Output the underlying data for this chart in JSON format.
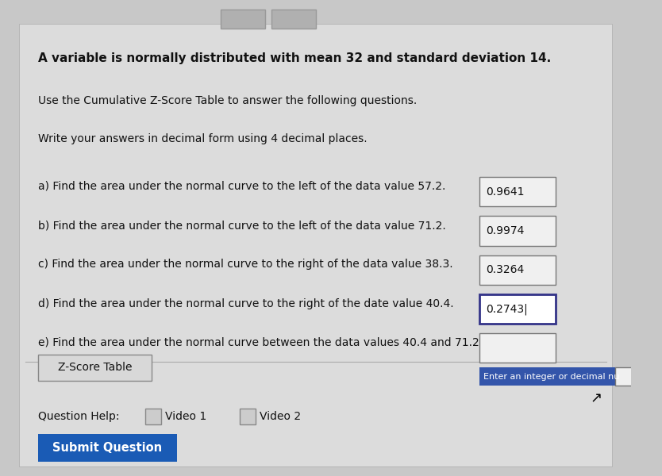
{
  "bg_color": "#c8c8c8",
  "content_bg": "#e0e0e0",
  "title_line": "A variable is normally distributed with mean 32 and standard deviation 14.",
  "line2": "Use the Cumulative Z-Score Table to answer the following questions.",
  "line3": "Write your answers in decimal form using 4 decimal places.",
  "questions": [
    {
      "label": "a)",
      "text": "Find the area under the normal curve to the left of the data value 57.2.",
      "answer": "0.9641",
      "has_answer": true,
      "active": false
    },
    {
      "label": "b)",
      "text": "Find the area under the normal curve to the left of the data value 71.2.",
      "answer": "0.9974",
      "has_answer": true,
      "active": false
    },
    {
      "label": "c)",
      "text": "Find the area under the normal curve to the right of the data value 38.3.",
      "answer": "0.3264",
      "has_answer": true,
      "active": false
    },
    {
      "label": "d)",
      "text": "Find the area under the normal curve to the right of the date value 40.4.",
      "answer": "0.2743",
      "has_answer": true,
      "active": true
    },
    {
      "label": "e)",
      "text": "Find the area under the normal curve between the data values 40.4 and 71.2.",
      "answer": "",
      "has_answer": false,
      "active": false,
      "tooltip": "Enter an integer or decimal nu"
    }
  ],
  "zscore_button": "Z-Score Table",
  "help_text": "Question Help:",
  "video1": "Video 1",
  "video2": "Video 2",
  "submit_button": "Submit Question",
  "submit_bg": "#1a5bb5",
  "submit_text_color": "#ffffff",
  "font_size_title": 11,
  "font_size_body": 10,
  "text_color": "#111111",
  "box_border": "#888888",
  "box_fill": "#f5f5f5",
  "tooltip_bg": "#3355aa",
  "tooltip_text": "#ffffff"
}
